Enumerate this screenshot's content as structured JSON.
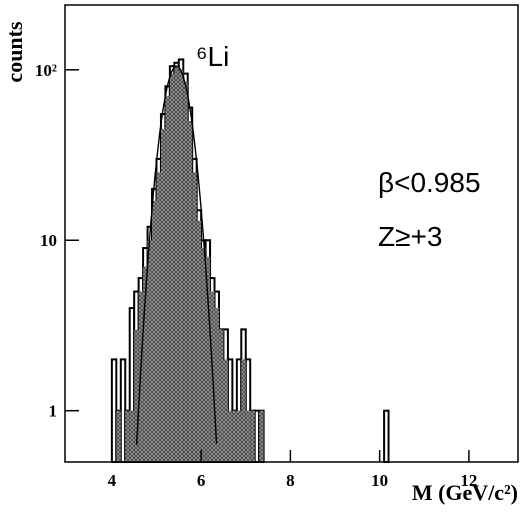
{
  "chart_data": {
    "type": "histogram",
    "log_y": true,
    "x_label": "M (GeV/c²)",
    "y_label": "counts",
    "annotations": [
      "⁶Li",
      "β<0.985",
      "Z≥+3"
    ],
    "bins": [
      4,
      4.1,
      4.2,
      4.3,
      4.4,
      4.5,
      4.6,
      4.7,
      4.8,
      4.9,
      5,
      5.1,
      5.2,
      5.3,
      5.4,
      5.5,
      5.6,
      5.7,
      5.8,
      5.9,
      6,
      6.1,
      6.2,
      6.3,
      6.4,
      6.5,
      6.6,
      6.7,
      6.8,
      6.9,
      7,
      7.1,
      7.2,
      7.3,
      7.4,
      7.5,
      7.6,
      7.7,
      7.8,
      7.9,
      8,
      8.1,
      8.2,
      8.3,
      8.4,
      8.5,
      8.6,
      8.7,
      8.8,
      8.9,
      9,
      9.1,
      9.2,
      9.3,
      9.4,
      9.5,
      9.6,
      9.7,
      9.8,
      9.9,
      10,
      10.1,
      10.2
    ],
    "series": [
      {
        "color": "#ffffff",
        "values": [
          2,
          1,
          2,
          1,
          4,
          5,
          6,
          9,
          12,
          20,
          30,
          55,
          80,
          105,
          110,
          115,
          95,
          60,
          30,
          15,
          10,
          10,
          6,
          5,
          3,
          3,
          2,
          1,
          2,
          3,
          2,
          1,
          1,
          1,
          0,
          0,
          0,
          0,
          0,
          0,
          0,
          0,
          0,
          0,
          0,
          0,
          0,
          0,
          0,
          0,
          0,
          0,
          0,
          0,
          0,
          0,
          0,
          0,
          0,
          0,
          0,
          1
        ]
      },
      {
        "color": "#8a8a8a",
        "values": [
          0,
          1,
          0,
          1,
          1,
          3,
          5,
          7,
          10,
          17,
          25,
          45,
          70,
          95,
          105,
          100,
          85,
          50,
          25,
          13,
          9,
          8,
          5,
          4,
          3,
          2,
          1,
          1,
          1,
          2,
          1,
          1,
          0,
          1,
          0,
          0,
          0,
          0,
          0,
          0,
          0,
          0,
          0,
          0,
          0,
          0,
          0,
          0,
          0,
          0,
          0,
          0,
          0,
          0,
          0,
          0,
          0,
          0,
          0,
          0,
          0,
          0
        ]
      }
    ],
    "fit": {
      "amplitude": 105,
      "mean": 5.45,
      "sigma": 0.28
    },
    "xlim": [
      2.95,
      13.1
    ],
    "ylim": [
      0.5,
      240
    ],
    "xticks": [
      4,
      6,
      8,
      10,
      12
    ],
    "yticks": [
      1,
      10,
      {
        "value": 100,
        "label": "10²"
      }
    ]
  }
}
